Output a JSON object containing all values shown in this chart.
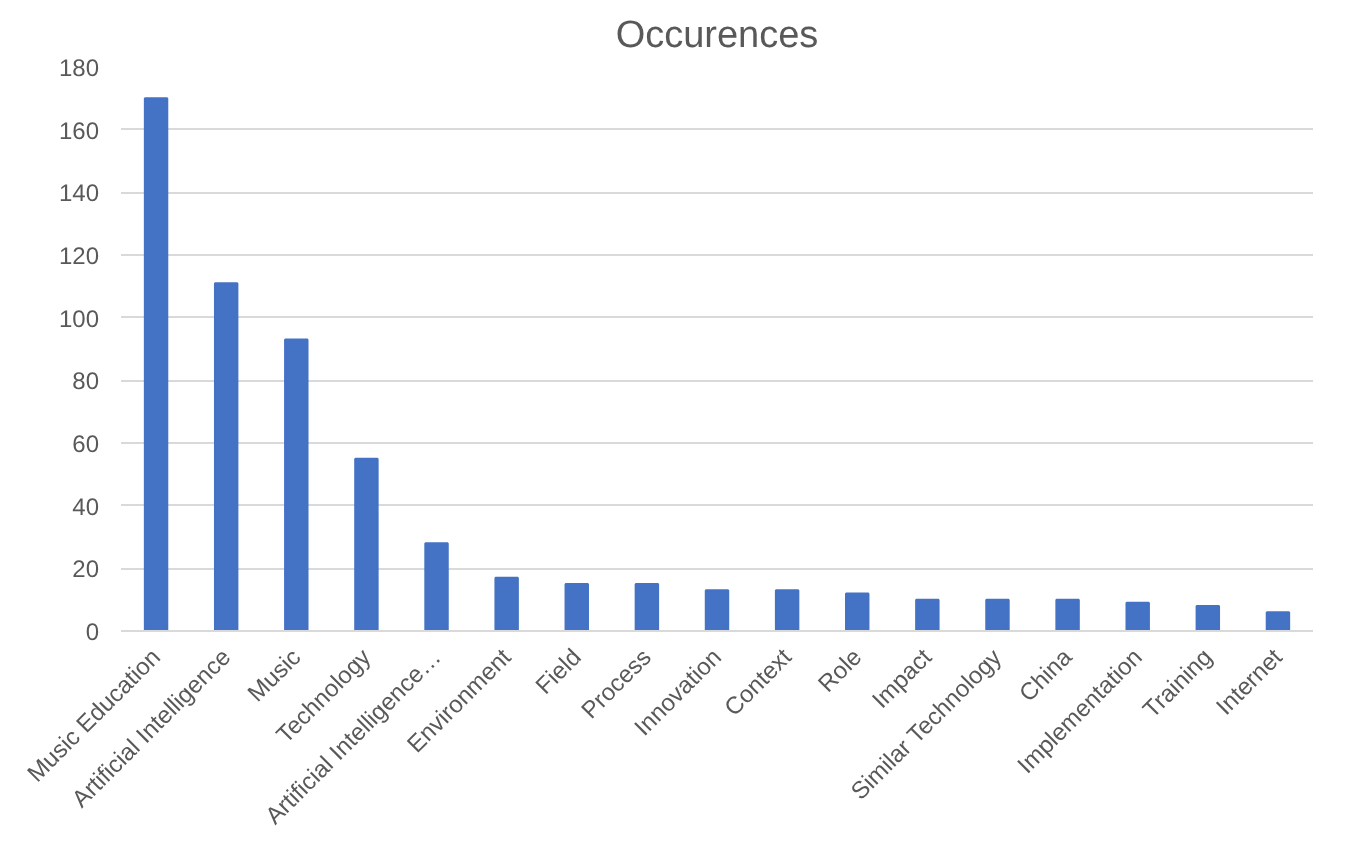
{
  "chart_data": {
    "type": "bar",
    "title": "Occurences",
    "categories": [
      "Music Education",
      "Artificial Intelligence",
      "Music",
      "Technology",
      "Artificial Intelligence…",
      "Environment",
      "Field",
      "Process",
      "Innovation",
      "Context",
      "Role",
      "Impact",
      "Similar Technology",
      "China",
      "Implementation",
      "Training",
      "Internet"
    ],
    "values": [
      170,
      111,
      93,
      55,
      28,
      17,
      15,
      15,
      13,
      13,
      12,
      10,
      10,
      10,
      9,
      8,
      6
    ],
    "color": "#4472c4",
    "ylim": [
      0,
      180
    ],
    "yticks": [
      0,
      20,
      40,
      60,
      80,
      100,
      120,
      140,
      160,
      180
    ],
    "grid": "y"
  }
}
